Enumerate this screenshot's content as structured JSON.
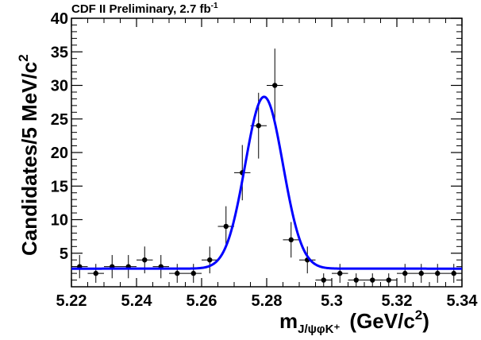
{
  "header": {
    "label": "CDF II Preliminary, 2.7 fb",
    "superscript": "-1"
  },
  "chart_data": {
    "type": "scatter",
    "title": "",
    "xlabel": "m",
    "xlabel_subscript": "J/ψφK⁺",
    "xlabel_units": "(GeV/c",
    "xlabel_units_sup": "2",
    "xlabel_units_close": ")",
    "ylabel": "Candidates/5 MeV/c",
    "ylabel_sup": "2",
    "xlim": [
      5.22,
      5.34
    ],
    "ylim": [
      0,
      40
    ],
    "x_ticks": [
      "5.22",
      "5.24",
      "5.26",
      "5.28",
      "5.3",
      "5.32",
      "5.34"
    ],
    "x_tick_values": [
      5.22,
      5.24,
      5.26,
      5.28,
      5.3,
      5.32,
      5.34
    ],
    "y_ticks": [
      "5",
      "10",
      "15",
      "20",
      "25",
      "30",
      "35",
      "40"
    ],
    "y_tick_values": [
      5,
      10,
      15,
      20,
      25,
      30,
      35,
      40
    ],
    "bin_width": 0.005,
    "series": [
      {
        "kind": "data-points",
        "color": "#000000",
        "x": [
          5.2225,
          5.2275,
          5.2325,
          5.2375,
          5.2425,
          5.2475,
          5.2525,
          5.2575,
          5.2625,
          5.2675,
          5.2725,
          5.2775,
          5.2825,
          5.2875,
          5.2925,
          5.2975,
          5.3025,
          5.3075,
          5.3125,
          5.3175,
          5.3225,
          5.3275,
          5.3325,
          5.3375
        ],
        "y": [
          3,
          2,
          3,
          3,
          4,
          3,
          2,
          2,
          4,
          9,
          17,
          24,
          30,
          7,
          4,
          1,
          2,
          1,
          1,
          1,
          2,
          2,
          2,
          2
        ],
        "yerr": [
          1.73,
          1.41,
          1.73,
          1.73,
          2.0,
          1.73,
          1.41,
          1.41,
          2.0,
          3.0,
          4.12,
          4.9,
          5.48,
          2.65,
          2.0,
          1.0,
          1.41,
          1.0,
          1.0,
          1.0,
          1.41,
          1.41,
          1.41,
          1.41
        ]
      },
      {
        "kind": "fit",
        "color": "#0000ff",
        "model": "gaussian-plus-flat",
        "baseline": 2.7,
        "amplitude": 25.6,
        "mean": 5.2792,
        "sigma": 0.0058
      }
    ]
  }
}
